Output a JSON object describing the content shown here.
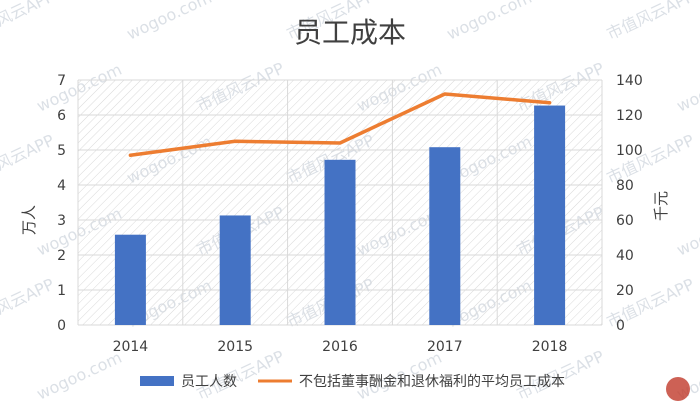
{
  "chart_data": {
    "type": "bar",
    "title": "员工成本",
    "categories": [
      "2014",
      "2015",
      "2016",
      "2017",
      "2018"
    ],
    "series": [
      {
        "name": "员工人数",
        "type": "bar",
        "axis": "left",
        "color": "#4472c4",
        "values": [
          2.58,
          3.13,
          4.72,
          5.08,
          6.27
        ]
      },
      {
        "name": "不包括董事酬金和退休福利的平均员工成本",
        "type": "line",
        "axis": "right",
        "color": "#ed7d31",
        "values": [
          97,
          105,
          104,
          132,
          127
        ]
      }
    ],
    "ylabel": "万人",
    "y2label": "千元",
    "ylim": [
      0,
      7
    ],
    "y2lim": [
      0,
      140
    ],
    "yticks": [
      "0",
      "1",
      "2",
      "3",
      "4",
      "5",
      "6",
      "7"
    ],
    "y2ticks": [
      "0",
      "20",
      "40",
      "60",
      "80",
      "100",
      "120",
      "140"
    ],
    "grid": true,
    "legend_position": "bottom"
  },
  "watermark": {
    "texts": [
      "市值风云APP",
      "wogoo.com"
    ]
  }
}
